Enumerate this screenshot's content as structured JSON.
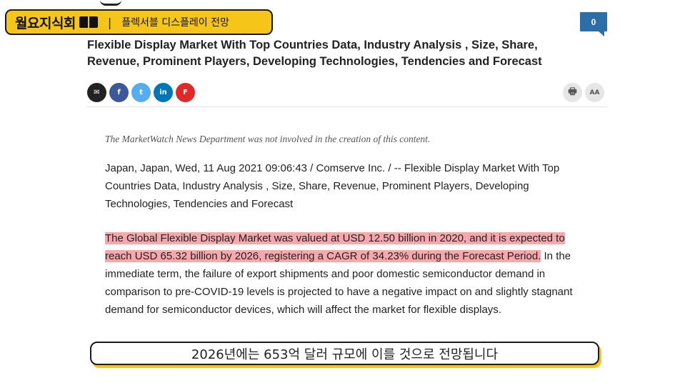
{
  "banner": {
    "channel_name": "월요지식회",
    "separator": "|",
    "subtitle": "플렉서블 디스플레이 전망"
  },
  "comments": {
    "count": "0"
  },
  "article": {
    "headline": "Flexible Display Market With Top Countries Data, Industry Analysis , Size, Share, Revenue, Prominent Players, Developing Technologies, Tendencies and Forecast",
    "disclaimer": "The MarketWatch News Department was not involved in the creation of this content.",
    "para1": "Japan, Japan, Wed, 11 Aug 2021 09:06:43 / Comserve Inc. / -- Flexible Display Market With Top Countries Data, Industry Analysis , Size, Share, Revenue, Prominent Players, Developing Technologies, Tendencies and Forecast",
    "para2_highlight": "The Global Flexible Display Market was valued at USD 12.50 billion in 2020, and it is expected to reach USD 65.32 billion by 2026, registering a CAGR of 34.23% during the Forecast Period.",
    "para2_rest": " In the immediate term, the failure of export shipments and poor domestic semiconductor demand in comparison to pre-COVID-19 levels is projected to have a negative impact on and slightly stagnant demand for semiconductor devices, which will affect the market for flexible displays."
  },
  "share": {
    "buttons": [
      {
        "name": "email-icon",
        "glyph": "✉",
        "color": "#222222"
      },
      {
        "name": "facebook-icon",
        "glyph": "f",
        "color": "#3b5998"
      },
      {
        "name": "twitter-icon",
        "glyph": "t",
        "color": "#55acee"
      },
      {
        "name": "linkedin-icon",
        "glyph": "in",
        "color": "#0077b5"
      },
      {
        "name": "flipboard-icon",
        "glyph": "F",
        "color": "#e12828"
      }
    ]
  },
  "tools": {
    "print_glyph": "🖶",
    "text_size_glyph": "AA"
  },
  "caption": {
    "text": "2026년에는 653억 달러 규모에 이를 것으로 전망됩니다"
  }
}
